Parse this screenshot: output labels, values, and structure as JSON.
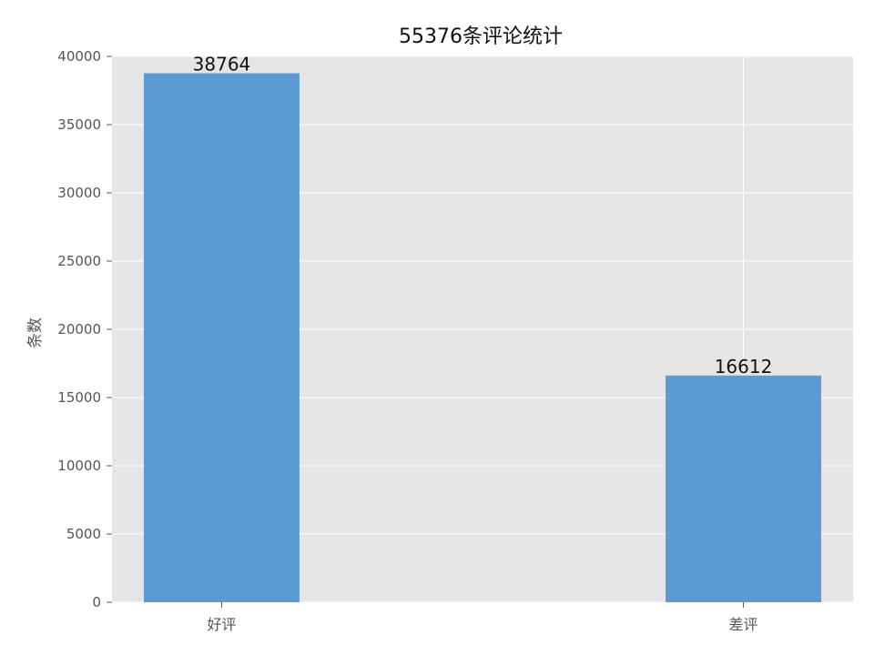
{
  "chart_data": {
    "type": "bar",
    "title": "55376条评论统计",
    "xlabel": "",
    "ylabel": "条数",
    "categories": [
      "好评",
      "差评"
    ],
    "values": [
      38764,
      16612
    ],
    "data_labels": [
      "38764",
      "16612"
    ],
    "ylim": [
      0,
      40000
    ],
    "yticks": [
      0,
      5000,
      10000,
      15000,
      20000,
      25000,
      30000,
      35000,
      40000
    ],
    "ytick_labels": [
      "0",
      "5000",
      "10000",
      "15000",
      "20000",
      "25000",
      "30000",
      "35000",
      "40000"
    ],
    "grid": true,
    "colors": {
      "bar": "#5b9bd5",
      "plot_background": "#e5e5e5",
      "grid": "#ffffff"
    }
  }
}
